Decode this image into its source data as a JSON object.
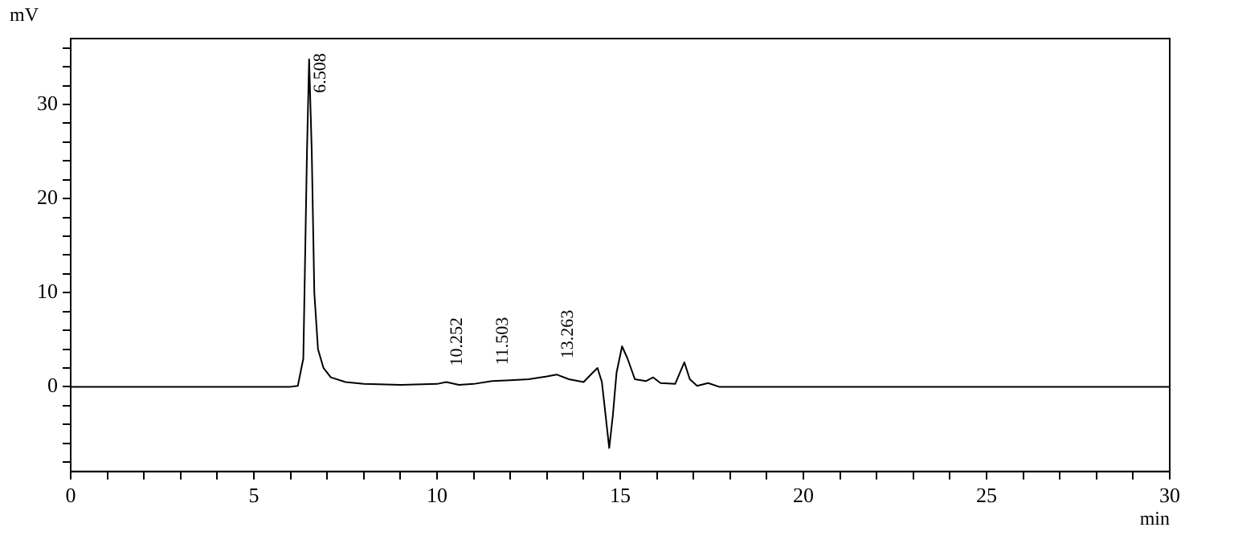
{
  "chart_data": {
    "type": "line",
    "xlabel": "min",
    "ylabel": "mV",
    "x": [
      0,
      6.0,
      6.2,
      6.35,
      6.45,
      6.508,
      6.58,
      6.65,
      6.75,
      6.9,
      7.1,
      7.5,
      8,
      9,
      10,
      10.252,
      10.6,
      11,
      11.503,
      12,
      12.5,
      13,
      13.263,
      13.6,
      14,
      14.25,
      14.38,
      14.5,
      14.6,
      14.7,
      14.8,
      14.9,
      15.05,
      15.2,
      15.4,
      15.7,
      15.9,
      16.1,
      16.5,
      16.75,
      16.9,
      17.1,
      17.4,
      17.7,
      30
    ],
    "series": [
      {
        "color": "#000000",
        "values": [
          0,
          0,
          0.1,
          3,
          25,
          34.8,
          25,
          10,
          4,
          2,
          1,
          0.5,
          0.3,
          0.2,
          0.3,
          0.5,
          0.2,
          0.3,
          0.6,
          0.7,
          0.8,
          1.1,
          1.3,
          0.8,
          0.5,
          1.5,
          2,
          0.5,
          -3,
          -6.5,
          -3,
          1.5,
          4.3,
          3,
          0.8,
          0.6,
          1,
          0.4,
          0.3,
          2.6,
          0.8,
          0.1,
          0.4,
          0,
          0
        ]
      }
    ],
    "xlim": [
      0,
      30
    ],
    "xticks": [
      0,
      {
        "value": 1,
        "label": null
      },
      {
        "value": 2,
        "label": null
      },
      {
        "value": 3,
        "label": null
      },
      {
        "value": 4,
        "label": null
      },
      5,
      {
        "value": 6,
        "label": null
      },
      {
        "value": 7,
        "label": null
      },
      {
        "value": 8,
        "label": null
      },
      {
        "value": 9,
        "label": null
      },
      10,
      {
        "value": 11,
        "label": null
      },
      {
        "value": 12,
        "label": null
      },
      {
        "value": 13,
        "label": null
      },
      {
        "value": 14,
        "label": null
      },
      15,
      {
        "value": 16,
        "label": null
      },
      {
        "value": 17,
        "label": null
      },
      {
        "value": 18,
        "label": null
      },
      {
        "value": 19,
        "label": null
      },
      20,
      {
        "value": 21,
        "label": null
      },
      {
        "value": 22,
        "label": null
      },
      {
        "value": 23,
        "label": null
      },
      {
        "value": 24,
        "label": null
      },
      25,
      {
        "value": 26,
        "label": null
      },
      {
        "value": 27,
        "label": null
      },
      {
        "value": 28,
        "label": null
      },
      {
        "value": 29,
        "label": null
      },
      30
    ],
    "ylim": [
      -9,
      37
    ],
    "yticks": [
      {
        "value": -8,
        "label": null
      },
      {
        "value": -6,
        "label": null
      },
      {
        "value": -4,
        "label": null
      },
      {
        "value": -2,
        "label": null
      },
      0,
      {
        "value": 2,
        "label": null
      },
      {
        "value": 4,
        "label": null
      },
      {
        "value": 6,
        "label": null
      },
      {
        "value": 8,
        "label": null
      },
      10,
      {
        "value": 12,
        "label": null
      },
      {
        "value": 14,
        "label": null
      },
      {
        "value": 16,
        "label": null
      },
      {
        "value": 18,
        "label": null
      },
      20,
      {
        "value": 22,
        "label": null
      },
      {
        "value": 24,
        "label": null
      },
      {
        "value": 26,
        "label": null
      },
      {
        "value": 28,
        "label": null
      },
      30,
      {
        "value": 32,
        "label": null
      },
      {
        "value": 34,
        "label": null
      },
      {
        "value": 36,
        "label": null
      }
    ],
    "annotations": [
      {
        "text": "6.508",
        "x": 6.508,
        "y": 34.8
      },
      {
        "text": "10.252",
        "x": 10.252,
        "y": 0.5
      },
      {
        "text": "11.503",
        "x": 11.503,
        "y": 0.6
      },
      {
        "text": "13.263",
        "x": 13.263,
        "y": 1.3
      }
    ],
    "legend": false,
    "marker": "none",
    "line_style": "solid"
  }
}
